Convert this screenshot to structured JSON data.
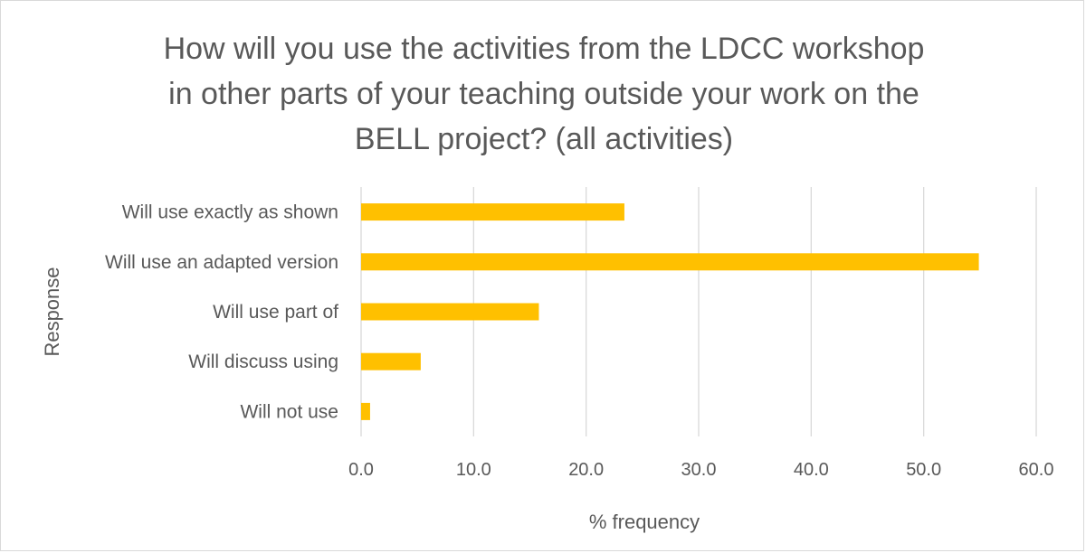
{
  "chart_data": {
    "type": "bar",
    "orientation": "horizontal",
    "title": "How will you use the activities from the LDCC workshop\nin other parts of your teaching outside your work on the\nBELL project? (all activities)",
    "xlabel": "% frequency",
    "ylabel": "Response",
    "categories": [
      "Will use exactly as shown",
      "Will use an adapted version",
      "Will use part of",
      "Will discuss using",
      "Will not use"
    ],
    "values": [
      23.4,
      54.9,
      15.8,
      5.3,
      0.8
    ],
    "xlim": [
      0,
      60
    ],
    "xticks": [
      0,
      10,
      20,
      30,
      40,
      50,
      60
    ],
    "xtick_labels": [
      "0.0",
      "10.0",
      "20.0",
      "30.0",
      "40.0",
      "50.0",
      "60.0"
    ],
    "grid": true,
    "bar_color": "#FFC000",
    "gridline_color": "#D9D9D9",
    "text_color": "#595959"
  }
}
